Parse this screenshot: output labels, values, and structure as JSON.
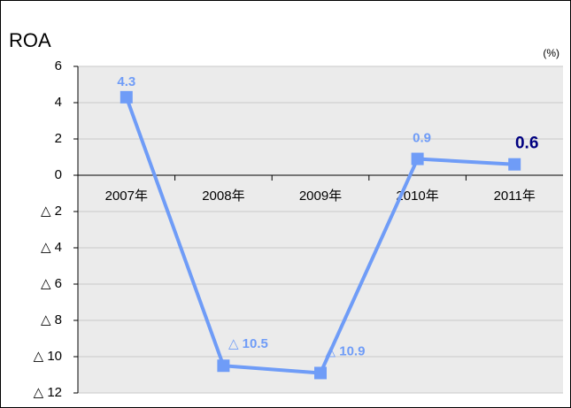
{
  "chart_data": {
    "type": "line",
    "title": "ROA",
    "unit_label": "(%)",
    "categories": [
      "2007年",
      "2008年",
      "2009年",
      "2010年",
      "2011年"
    ],
    "series": [
      {
        "name": "ROA",
        "color": "#6f9cf7",
        "values": [
          4.3,
          -10.5,
          -10.9,
          0.9,
          0.6
        ],
        "value_labels": [
          "4.3",
          "△ 10.5",
          "△ 10.9",
          "0.9",
          "0.6"
        ],
        "value_label_colors": [
          "#6f9cf7",
          "#6f9cf7",
          "#6f9cf7",
          "#6f9cf7",
          "#000080"
        ]
      }
    ],
    "ylim": [
      -12,
      6
    ],
    "yticks": [
      6,
      4,
      2,
      0,
      {
        "value": -2,
        "label": "△ 2"
      },
      {
        "value": -4,
        "label": "△ 4"
      },
      {
        "value": -6,
        "label": "△ 6"
      },
      {
        "value": -8,
        "label": "△ 8"
      },
      {
        "value": -10,
        "label": "△ 10"
      },
      {
        "value": -12,
        "label": "△ 12"
      }
    ],
    "grid": true
  }
}
